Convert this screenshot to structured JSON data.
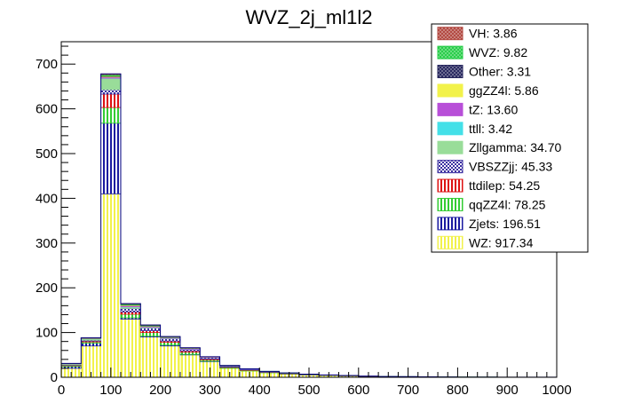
{
  "chart_data": {
    "type": "bar",
    "stacked": true,
    "title": "WVZ_2j_ml1l2",
    "xlabel": "",
    "ylabel": "",
    "xlim": [
      0,
      1000
    ],
    "ylim": [
      0,
      750
    ],
    "x_ticks": [
      0,
      100,
      200,
      300,
      400,
      500,
      600,
      700,
      800,
      900,
      1000
    ],
    "y_ticks": [
      0,
      100,
      200,
      300,
      400,
      500,
      600,
      700
    ],
    "bin_edges": [
      0,
      40,
      80,
      120,
      160,
      200,
      240,
      280,
      320,
      360,
      400,
      440,
      480,
      520,
      560,
      600,
      640,
      680,
      720,
      760,
      800,
      840,
      880,
      920,
      960,
      1000
    ],
    "legend_position": "top-right",
    "series": [
      {
        "name": "WZ",
        "legend": "WZ: 917.34",
        "color": "#f2f24a",
        "pattern": "vertical",
        "values": [
          20,
          70,
          410,
          130,
          90,
          70,
          50,
          35,
          20,
          14,
          10,
          7,
          5,
          4,
          3,
          2,
          1.5,
          1.2,
          1,
          0.6,
          0.5,
          0.4,
          0.3,
          0.2,
          0.2
        ]
      },
      {
        "name": "Zjets",
        "legend": "Zjets: 196.51",
        "color": "#1a1aa0",
        "pattern": "vertical",
        "values": [
          4,
          6,
          158,
          3,
          2,
          2,
          1,
          1,
          0,
          0,
          0,
          0,
          0,
          0,
          0,
          0,
          0,
          0,
          0,
          0,
          0,
          0,
          0,
          0,
          0
        ]
      },
      {
        "name": "qqZZ4l",
        "legend": "qqZZ4l: 78.25",
        "color": "#33cc33",
        "pattern": "vertical",
        "values": [
          2,
          3,
          35,
          8,
          8,
          6,
          5,
          3,
          2,
          1.5,
          1,
          0.8,
          0.6,
          0.5,
          0.4,
          0.3,
          0.2,
          0.2,
          0.1,
          0.1,
          0.1,
          0.1,
          0,
          0,
          0
        ]
      },
      {
        "name": "ttdilep",
        "legend": "ttdilep: 54.25",
        "color": "#dd1111",
        "pattern": "vertical",
        "values": [
          1,
          2,
          30,
          5,
          4,
          3,
          3,
          2,
          1,
          1,
          0.5,
          0.5,
          0.5,
          0.3,
          0.2,
          0.1,
          0,
          0,
          0,
          0,
          0,
          0,
          0,
          0,
          0
        ]
      },
      {
        "name": "VBSZZjj",
        "legend": "VBSZZjj: 45.33",
        "color": "#3a2ea0",
        "pattern": "dots",
        "values": [
          1,
          2,
          10,
          8,
          6,
          5,
          4,
          3,
          2,
          1.5,
          1,
          0.7,
          0.5,
          0.3,
          0.2,
          0.1,
          0,
          0,
          0,
          0,
          0,
          0,
          0,
          0,
          0
        ]
      },
      {
        "name": "Zllgamma",
        "legend": "Zllgamma: 34.70",
        "color": "#99dd99",
        "pattern": "solid",
        "values": [
          2,
          3,
          25,
          3,
          1,
          0.7,
          0,
          0,
          0,
          0,
          0,
          0,
          0,
          0,
          0,
          0,
          0,
          0,
          0,
          0,
          0,
          0,
          0,
          0,
          0
        ]
      },
      {
        "name": "ttll",
        "legend": "ttll: 3.42",
        "color": "#44e0e8",
        "pattern": "solid",
        "values": [
          0.1,
          0.2,
          0.5,
          0.6,
          0.5,
          0.4,
          0.3,
          0.2,
          0.2,
          0.1,
          0.1,
          0.1,
          0.1,
          0,
          0,
          0,
          0,
          0,
          0,
          0,
          0,
          0,
          0,
          0,
          0
        ]
      },
      {
        "name": "tZ",
        "legend": "tZ: 13.60",
        "color": "#b84fd8",
        "pattern": "solid",
        "values": [
          0.2,
          0.5,
          2.5,
          2.5,
          2,
          1.6,
          1.2,
          0.9,
          0.6,
          0.5,
          0.4,
          0.3,
          0.2,
          0.1,
          0.1,
          0,
          0,
          0,
          0,
          0,
          0,
          0,
          0,
          0,
          0
        ]
      },
      {
        "name": "ggZZ4l",
        "legend": "ggZZ4l: 5.86",
        "color": "#f2f24a",
        "pattern": "solid",
        "values": [
          0.1,
          0.3,
          1.5,
          1.2,
          0.9,
          0.6,
          0.4,
          0.3,
          0.2,
          0.1,
          0.1,
          0.1,
          0,
          0,
          0,
          0,
          0,
          0,
          0,
          0,
          0,
          0,
          0,
          0,
          0
        ]
      },
      {
        "name": "Other",
        "legend": "Other: 3.31",
        "color": "#22225a",
        "pattern": "cross",
        "values": [
          0.1,
          0.2,
          1,
          0.6,
          0.5,
          0.3,
          0.2,
          0.1,
          0.1,
          0.1,
          0.05,
          0.05,
          0,
          0,
          0,
          0,
          0,
          0,
          0,
          0,
          0,
          0,
          0,
          0,
          0
        ]
      },
      {
        "name": "WVZ",
        "legend": "WVZ: 9.82",
        "color": "#22cc44",
        "pattern": "cross",
        "values": [
          0.3,
          0.6,
          3,
          2,
          1.5,
          1,
          0.6,
          0.3,
          0.2,
          0.1,
          0.1,
          0.1,
          0,
          0,
          0,
          0,
          0,
          0,
          0,
          0,
          0,
          0,
          0,
          0,
          0
        ]
      },
      {
        "name": "VH",
        "legend": "VH: 3.86",
        "color": "#b0443c",
        "pattern": "cross",
        "values": [
          0.1,
          0.3,
          1.5,
          0.8,
          0.5,
          0.3,
          0.2,
          0.1,
          0.05,
          0,
          0,
          0,
          0,
          0,
          0,
          0,
          0,
          0,
          0,
          0,
          0,
          0,
          0,
          0,
          0
        ]
      }
    ],
    "legend_order": [
      "VH",
      "WVZ",
      "Other",
      "ggZZ4l",
      "tZ",
      "ttll",
      "Zllgamma",
      "VBSZZjj",
      "ttdilep",
      "qqZZ4l",
      "Zjets",
      "WZ"
    ]
  }
}
